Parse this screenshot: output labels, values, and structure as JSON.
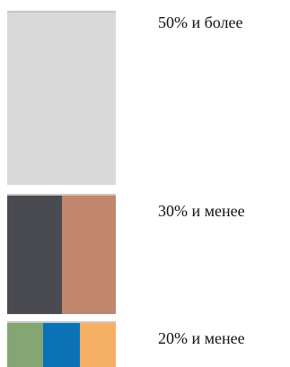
{
  "tiers": [
    {
      "label": "50% и более",
      "colors": [
        "#d9d9d9"
      ]
    },
    {
      "label": "30% и менее",
      "colors": [
        "#4a4b50",
        "#c0876e"
      ]
    },
    {
      "label": "20% и менее",
      "colors": [
        "#86a575",
        "#0b72b5",
        "#f6b066"
      ]
    }
  ]
}
